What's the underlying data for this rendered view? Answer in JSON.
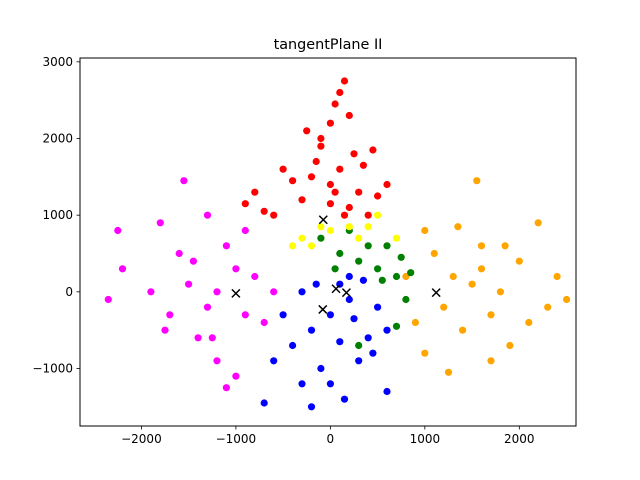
{
  "chart_data": {
    "type": "scatter",
    "title": "tangentPlane II",
    "xlabel": "",
    "ylabel": "",
    "xlim": [
      -2650,
      2600
    ],
    "ylim": [
      -1750,
      3050
    ],
    "xticks": [
      -2000,
      -1000,
      0,
      1000,
      2000
    ],
    "yticks": [
      -1000,
      0,
      1000,
      2000,
      3000
    ],
    "xtick_labels": [
      "−2000",
      "−1000",
      "0",
      "1000",
      "2000"
    ],
    "ytick_labels": [
      "−1000",
      "0",
      "1000",
      "2000",
      "3000"
    ],
    "grid": false,
    "legend": "none",
    "series": [
      {
        "color": "#ff0000",
        "points": [
          [
            -100,
            2000
          ],
          [
            0,
            1400
          ],
          [
            -300,
            1200
          ],
          [
            200,
            1100
          ],
          [
            -600,
            1000
          ],
          [
            100,
            1600
          ],
          [
            300,
            1300
          ],
          [
            0,
            2200
          ],
          [
            -150,
            1700
          ],
          [
            50,
            2450
          ],
          [
            150,
            2750
          ],
          [
            -200,
            1500
          ],
          [
            400,
            1000
          ],
          [
            -400,
            1450
          ],
          [
            250,
            1800
          ],
          [
            -800,
            1300
          ],
          [
            500,
            1250
          ],
          [
            100,
            2600
          ],
          [
            -250,
            2100
          ],
          [
            350,
            1650
          ],
          [
            150,
            1000
          ],
          [
            -700,
            1050
          ],
          [
            200,
            2300
          ],
          [
            600,
            1400
          ],
          [
            -100,
            1900
          ],
          [
            0,
            1150
          ],
          [
            -500,
            1600
          ],
          [
            450,
            1850
          ],
          [
            50,
            1300
          ],
          [
            -900,
            1150
          ]
        ]
      },
      {
        "color": "#ffa500",
        "points": [
          [
            1500,
            100
          ],
          [
            1300,
            200
          ],
          [
            1800,
            0
          ],
          [
            1700,
            -300
          ],
          [
            1200,
            -200
          ],
          [
            2000,
            400
          ],
          [
            1600,
            600
          ],
          [
            1100,
            500
          ],
          [
            2300,
            -200
          ],
          [
            1400,
            -500
          ],
          [
            900,
            -400
          ],
          [
            2200,
            900
          ],
          [
            1550,
            1450
          ],
          [
            1900,
            -700
          ],
          [
            1000,
            800
          ],
          [
            2500,
            -100
          ],
          [
            1700,
            -900
          ],
          [
            1250,
            -1050
          ],
          [
            800,
            200
          ],
          [
            2100,
            -400
          ],
          [
            1600,
            300
          ],
          [
            1350,
            850
          ],
          [
            1850,
            600
          ],
          [
            1000,
            -800
          ],
          [
            2400,
            200
          ]
        ]
      },
      {
        "color": "#ff00ff",
        "points": [
          [
            -1200,
            0
          ],
          [
            -1000,
            300
          ],
          [
            -1300,
            -200
          ],
          [
            -900,
            -300
          ],
          [
            -1500,
            100
          ],
          [
            -1100,
            600
          ],
          [
            -1400,
            -600
          ],
          [
            -800,
            200
          ],
          [
            -1600,
            500
          ],
          [
            -2200,
            300
          ],
          [
            -1700,
            -300
          ],
          [
            -1200,
            -900
          ],
          [
            -1000,
            -1100
          ],
          [
            -2350,
            -100
          ],
          [
            -1800,
            900
          ],
          [
            -1300,
            1000
          ],
          [
            -600,
            0
          ],
          [
            -900,
            800
          ],
          [
            -1550,
            1450
          ],
          [
            -2250,
            800
          ],
          [
            -1100,
            -1250
          ],
          [
            -1750,
            -500
          ],
          [
            -1450,
            400
          ],
          [
            -1250,
            -600
          ],
          [
            -700,
            -400
          ],
          [
            -1900,
            0
          ]
        ]
      },
      {
        "color": "#0000ff",
        "points": [
          [
            0,
            -300
          ],
          [
            200,
            -100
          ],
          [
            -200,
            -500
          ],
          [
            400,
            -600
          ],
          [
            100,
            100
          ],
          [
            -300,
            0
          ],
          [
            300,
            -900
          ],
          [
            -100,
            -1000
          ],
          [
            500,
            -200
          ],
          [
            -400,
            -700
          ],
          [
            0,
            -1200
          ],
          [
            -200,
            -1500
          ],
          [
            600,
            -1300
          ],
          [
            -700,
            -1450
          ],
          [
            200,
            200
          ],
          [
            450,
            -800
          ],
          [
            -500,
            -300
          ],
          [
            100,
            -650
          ],
          [
            -150,
            100
          ],
          [
            350,
            150
          ],
          [
            600,
            -500
          ],
          [
            -600,
            -900
          ],
          [
            150,
            -1400
          ],
          [
            -300,
            -1200
          ],
          [
            250,
            -350
          ]
        ]
      },
      {
        "color": "#008000",
        "points": [
          [
            100,
            500
          ],
          [
            300,
            400
          ],
          [
            500,
            300
          ],
          [
            700,
            200
          ],
          [
            800,
            -100
          ],
          [
            400,
            600
          ],
          [
            -100,
            700
          ],
          [
            200,
            800
          ],
          [
            600,
            600
          ],
          [
            850,
            250
          ],
          [
            700,
            -450
          ],
          [
            300,
            -700
          ],
          [
            550,
            150
          ],
          [
            50,
            300
          ],
          [
            750,
            450
          ]
        ]
      },
      {
        "color": "#ffff00",
        "points": [
          [
            -300,
            700
          ],
          [
            -200,
            600
          ],
          [
            -100,
            850
          ],
          [
            200,
            850
          ],
          [
            400,
            850
          ],
          [
            700,
            700
          ],
          [
            -400,
            600
          ],
          [
            0,
            800
          ],
          [
            500,
            1000
          ],
          [
            300,
            700
          ]
        ]
      }
    ],
    "centroids": {
      "color": "#000000",
      "marker": "x",
      "points": [
        [
          -75,
          940
        ],
        [
          1120,
          -10
        ],
        [
          -1000,
          -20
        ],
        [
          60,
          40
        ],
        [
          170,
          -10
        ],
        [
          -80,
          -230
        ]
      ]
    }
  }
}
